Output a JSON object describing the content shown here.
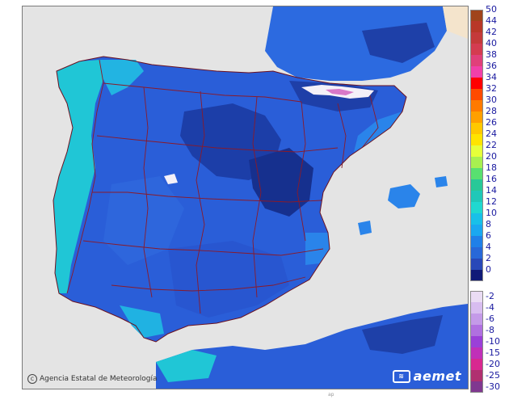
{
  "credit": {
    "text": "Agencia Estatal de Meteorología",
    "icon": "copyright-icon"
  },
  "brand": {
    "text": "aemet",
    "icon": "aemet-logo-icon"
  },
  "tiny_mark": "ap",
  "legend": {
    "positive": [
      {
        "label": "50",
        "color": "#a0441c"
      },
      {
        "label": "44",
        "color": "#b83828"
      },
      {
        "label": "42",
        "color": "#c43a3a"
      },
      {
        "label": "40",
        "color": "#d43c50"
      },
      {
        "label": "38",
        "color": "#e0407a"
      },
      {
        "label": "36",
        "color": "#f040a8"
      },
      {
        "label": "34",
        "color": "#ff0000"
      },
      {
        "label": "32",
        "color": "#ff4a00"
      },
      {
        "label": "30",
        "color": "#ff7a00"
      },
      {
        "label": "28",
        "color": "#ffa000"
      },
      {
        "label": "26",
        "color": "#ffc800"
      },
      {
        "label": "24",
        "color": "#ffe400"
      },
      {
        "label": "22",
        "color": "#e6ff3a"
      },
      {
        "label": "20",
        "color": "#a8f050"
      },
      {
        "label": "18",
        "color": "#58e070"
      },
      {
        "label": "16",
        "color": "#28c898"
      },
      {
        "label": "14",
        "color": "#20c8b8"
      },
      {
        "label": "12",
        "color": "#20d8d0"
      },
      {
        "label": "10",
        "color": "#18c0e8"
      },
      {
        "label": "8",
        "color": "#1aa8f0"
      },
      {
        "label": "6",
        "color": "#2080e8"
      },
      {
        "label": "4",
        "color": "#2868d8"
      },
      {
        "label": "2",
        "color": "#2848b8"
      },
      {
        "label": "0",
        "color": "#101a78"
      }
    ],
    "negative": [
      {
        "label": "-2",
        "color": "#eadcf4"
      },
      {
        "label": "-4",
        "color": "#d8bdf0"
      },
      {
        "label": "-6",
        "color": "#c49ae8"
      },
      {
        "label": "-8",
        "color": "#b070e0"
      },
      {
        "label": "-10",
        "color": "#9a40d8"
      },
      {
        "label": "-15",
        "color": "#c030b8"
      },
      {
        "label": "-20",
        "color": "#d82890"
      },
      {
        "label": "-25",
        "color": "#b03070"
      },
      {
        "label": "-30",
        "color": "#803890"
      }
    ]
  }
}
